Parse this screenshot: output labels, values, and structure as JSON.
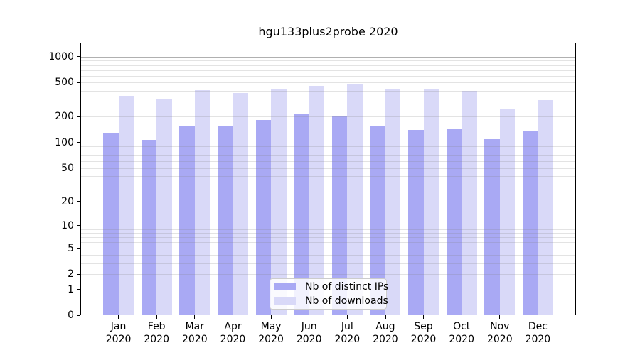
{
  "title": "hgu133plus2probe 2020",
  "legend": {
    "items": [
      {
        "label": "Nb of distinct IPs",
        "color": "#a9a9f4"
      },
      {
        "label": "Nb of downloads",
        "color": "#d9d9f8"
      }
    ]
  },
  "chart_data": {
    "type": "bar",
    "title": "hgu133plus2probe 2020",
    "categories": [
      "Jan 2020",
      "Feb 2020",
      "Mar 2020",
      "Apr 2020",
      "May 2020",
      "Jun 2020",
      "Jul 2020",
      "Aug 2020",
      "Sep 2020",
      "Oct 2020",
      "Nov 2020",
      "Dec 2020"
    ],
    "month_labels": [
      "Jan",
      "Feb",
      "Mar",
      "Apr",
      "May",
      "Jun",
      "Jul",
      "Aug",
      "Sep",
      "Oct",
      "Nov",
      "Dec"
    ],
    "year_label": "2020",
    "series": [
      {
        "name": "Nb of distinct IPs",
        "color": "#a9a9f4",
        "values": [
          130,
          108,
          158,
          154,
          184,
          212,
          201,
          158,
          141,
          147,
          110,
          135
        ]
      },
      {
        "name": "Nb of downloads",
        "color": "#d9d9f8",
        "values": [
          348,
          322,
          407,
          377,
          415,
          459,
          471,
          415,
          424,
          402,
          245,
          310
        ]
      }
    ],
    "yscale": "log1p",
    "yticks": [
      0,
      1,
      2,
      5,
      10,
      20,
      50,
      100,
      200,
      500,
      1000
    ],
    "ylim": [
      0,
      1455
    ],
    "xlabel": "",
    "ylabel": "",
    "grid": "horizontal-major-and-minor",
    "legend_position": "inside-bottom-center"
  }
}
